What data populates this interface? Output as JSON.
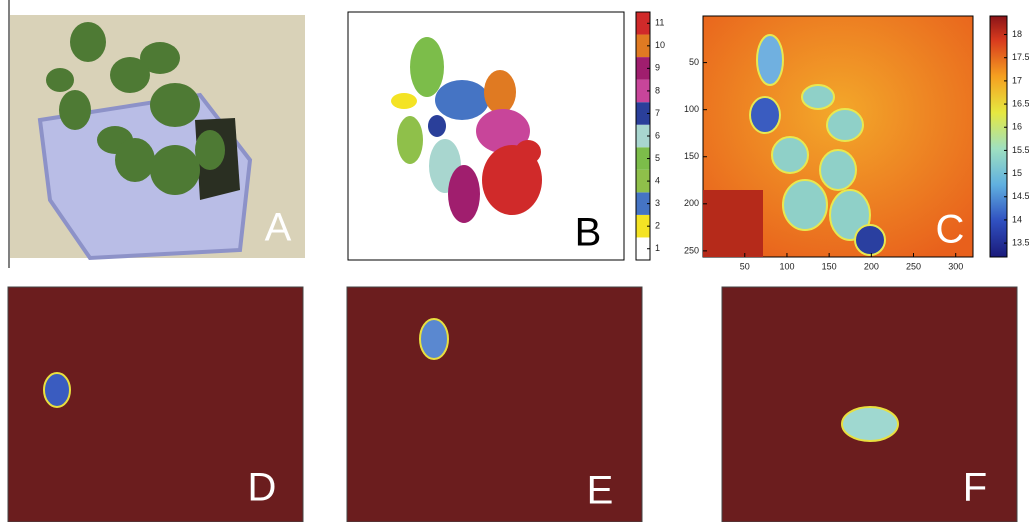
{
  "panels": [
    {
      "label": "A"
    },
    {
      "label": "B"
    },
    {
      "label": "C"
    },
    {
      "label": "D"
    },
    {
      "label": "E"
    },
    {
      "label": "F"
    }
  ],
  "colorbar_b": {
    "lim": [
      0.5,
      11.5
    ],
    "ticks": [
      1,
      2,
      3,
      4,
      5,
      6,
      7,
      8,
      9,
      10,
      11
    ]
  },
  "colorbar_c": {
    "lim": [
      13.2,
      18.4
    ],
    "ticks": [
      13.5,
      14,
      14.5,
      15,
      15.5,
      16,
      16.5,
      17,
      17.5,
      18
    ]
  },
  "axes_c": {
    "xlim": [
      0.5,
      320.5
    ],
    "ylim": [
      0.5,
      256.5
    ],
    "xticks": [
      50,
      100,
      150,
      200,
      250,
      300
    ],
    "yticks": [
      50,
      100,
      150,
      200,
      250
    ]
  }
}
